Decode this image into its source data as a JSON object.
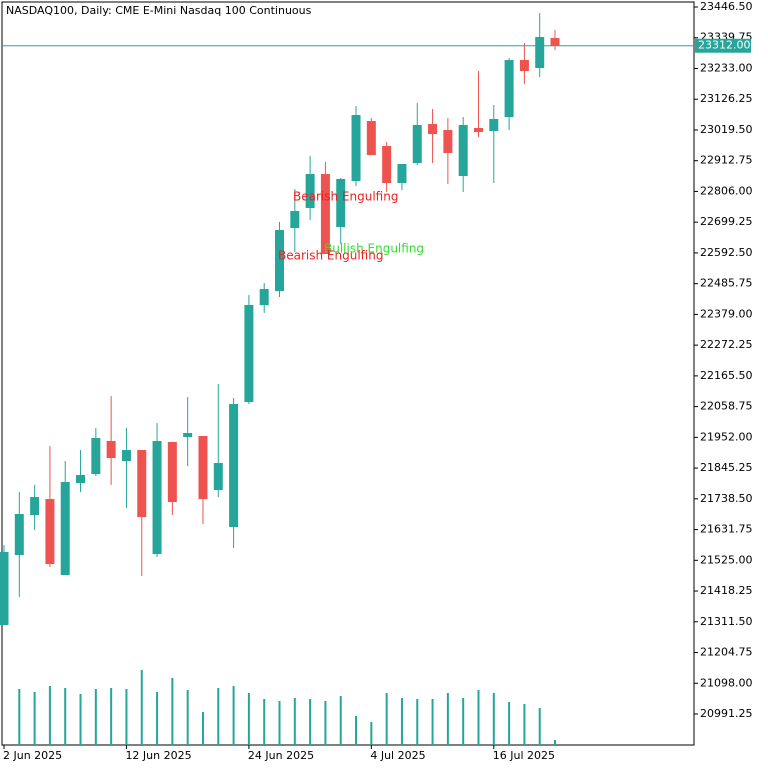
{
  "chart_data": {
    "type": "candlestick",
    "title": "NASDAQ100, Daily:  CME E-Mini Nasdaq 100 Continuous",
    "categories": [
      "2 Jun 2025",
      null,
      null,
      null,
      null,
      null,
      null,
      null,
      "12 Jun 2025",
      null,
      null,
      null,
      null,
      null,
      null,
      null,
      "24 Jun 2025",
      null,
      null,
      null,
      null,
      null,
      null,
      null,
      "4 Jul 2025",
      null,
      null,
      null,
      null,
      null,
      null,
      null,
      "16 Jul 2025",
      null,
      null,
      null,
      null
    ],
    "open": [
      21300.3,
      21543.4,
      21682.3,
      21737.8,
      21473.9,
      21793.4,
      21824.7,
      21939.3,
      21869.8,
      21908.0,
      21546.9,
      21935.8,
      21953.2,
      21956.7,
      21769.1,
      21640.6,
      22074.7,
      22411.6,
      22460.2,
      22679.0,
      22748.5,
      22866.5,
      22682.5,
      22842.2,
      23050.6,
      22963.7,
      22835.3,
      22904.7,
      23040.1,
      23019.3,
      22859.6,
      23026.3,
      23015.9,
      23064.5,
      23262.4,
      23234.7,
      23338.8
    ],
    "high": [
      21578.1,
      21762.4,
      21786.7,
      21921.9,
      21869.8,
      21908.0,
      21984.4,
      22095.5,
      21984.4,
      21908.0,
      22001.8,
      21935.8,
      22092.1,
      21956.7,
      22137.3,
      22088.6,
      22446.3,
      22488.0,
      22699.8,
      22814.4,
      22929.0,
      22908.2,
      22852.6,
      23102.7,
      23061.0,
      22977.7,
      22901.3,
      23113.1,
      23092.3,
      23061.0,
      23064.5,
      23224.2,
      23106.2,
      23269.4,
      23321.5,
      23425.7,
      23366.6
    ],
    "low": [
      21300.3,
      21397.5,
      21630.2,
      21501.7,
      21473.9,
      21762.4,
      21817.7,
      21786.7,
      21706.6,
      21470.4,
      21536.4,
      21682.3,
      21852.5,
      21651.0,
      21744.8,
      21567.7,
      22067.8,
      22383.8,
      22439.4,
      22595.7,
      22706.8,
      22588.7,
      22623.4,
      22824.9,
      22932.5,
      22804.0,
      22811.0,
      22897.8,
      22904.7,
      22831.8,
      22804.0,
      22995.0,
      22835.3,
      23019.3,
      23179.1,
      23203.4,
      23297.2
    ],
    "close": [
      21553.8,
      21685.8,
      21744.8,
      21512.1,
      21796.8,
      21821.2,
      21949.7,
      21880.2,
      21908.0,
      21675.3,
      21939.3,
      21727.5,
      21967.1,
      21737.8,
      21862.9,
      22067.8,
      22411.6,
      22467.2,
      22672.0,
      22738.0,
      22866.5,
      22588.7,
      22849.2,
      23071.4,
      22932.5,
      22835.3,
      22901.3,
      23036.7,
      23005.4,
      22939.5,
      23036.7,
      23012.4,
      23057.5,
      23262.4,
      23224.2,
      23342.3,
      23312.0
    ],
    "volume": [
      null,
      56,
      53,
      59,
      57,
      51,
      56,
      57,
      56,
      75,
      53,
      67,
      55,
      33,
      57,
      59,
      52,
      46,
      44,
      47,
      46,
      44,
      49,
      29,
      23,
      52,
      47,
      46,
      46,
      52,
      47,
      55,
      52,
      43,
      41,
      37,
      5
    ],
    "volume_lim": [
      0,
      100
    ],
    "up_color": "#26a69a",
    "down_color": "#ef5350",
    "ylim": [
      20883.6,
      23463.9
    ],
    "yticks": [
      {
        "value": 23446.5,
        "label": "23446.50"
      },
      {
        "value": 23339.75,
        "label": "23339.75"
      },
      {
        "value": 23233,
        "label": "23233.00"
      },
      {
        "value": 23126.25,
        "label": "23126.25"
      },
      {
        "value": 23019.5,
        "label": "23019.50"
      },
      {
        "value": 22912.75,
        "label": "22912.75"
      },
      {
        "value": 22806,
        "label": "22806.00"
      },
      {
        "value": 22699.25,
        "label": "22699.25"
      },
      {
        "value": 22592.5,
        "label": "22592.50"
      },
      {
        "value": 22485.75,
        "label": "22485.75"
      },
      {
        "value": 22379,
        "label": "22379.00"
      },
      {
        "value": 22272.25,
        "label": "22272.25"
      },
      {
        "value": 22165.5,
        "label": "22165.50"
      },
      {
        "value": 22058.75,
        "label": "22058.75"
      },
      {
        "value": 21952,
        "label": "21952.00"
      },
      {
        "value": 21845.25,
        "label": "21845.25"
      },
      {
        "value": 21738.5,
        "label": "21738.50"
      },
      {
        "value": 21631.75,
        "label": "21631.75"
      },
      {
        "value": 21525,
        "label": "21525.00"
      },
      {
        "value": 21418.25,
        "label": "21418.25"
      },
      {
        "value": 21311.5,
        "label": "21311.50"
      },
      {
        "value": 21204.75,
        "label": "21204.75"
      },
      {
        "value": 21098,
        "label": "21098.00"
      },
      {
        "value": 20991.25,
        "label": "20991.25"
      }
    ],
    "current_price": {
      "value": 23312,
      "label": "23312.00"
    },
    "annotations": [
      {
        "text": "Bearish Engulfing",
        "color": "#ef2020"
      },
      {
        "text": "Bullish Engulfing",
        "color": "#33dd33"
      },
      {
        "text": "Bearish Engulfing",
        "color": "#ef2020"
      }
    ]
  }
}
